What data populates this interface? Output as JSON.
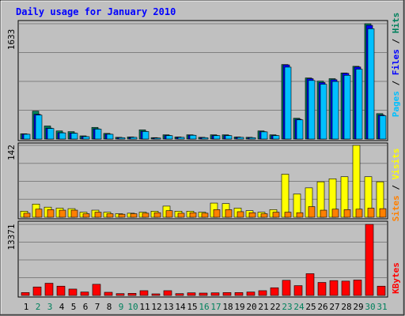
{
  "chart_data": {
    "type": "bar",
    "title": "Daily usage for January 2010",
    "days": [
      1,
      2,
      3,
      4,
      5,
      6,
      7,
      8,
      9,
      10,
      11,
      12,
      13,
      14,
      15,
      16,
      17,
      18,
      19,
      20,
      21,
      22,
      23,
      24,
      25,
      26,
      27,
      28,
      29,
      30,
      31
    ],
    "weekend_days": [
      2,
      3,
      9,
      10,
      16,
      17,
      23,
      24,
      30,
      31
    ],
    "panels": {
      "hits_panel": {
        "max_label": "1633",
        "ylim": [
          0,
          1633
        ],
        "legend": [
          "Pages",
          "Files",
          "Hits"
        ],
        "series": [
          {
            "name": "Hits",
            "values": [
              75,
              395,
              185,
              115,
              105,
              45,
              165,
              80,
              25,
              30,
              130,
              20,
              60,
              30,
              60,
              25,
              60,
              60,
              30,
              25,
              115,
              60,
              1055,
              295,
              865,
              820,
              855,
              935,
              1030,
              1633,
              360
            ]
          },
          {
            "name": "Files",
            "values": [
              70,
              350,
              155,
              90,
              85,
              35,
              145,
              70,
              20,
              25,
              110,
              15,
              50,
              25,
              55,
              20,
              50,
              50,
              25,
              20,
              105,
              50,
              1050,
              280,
              855,
              800,
              840,
              930,
              1020,
              1610,
              340
            ]
          },
          {
            "name": "Pages",
            "values": [
              5,
              6,
              4,
              5,
              3,
              2,
              4,
              3,
              2,
              2,
              3,
              1,
              2,
              1,
              2,
              1,
              2,
              2,
              1,
              1,
              3,
              2,
              8,
              4,
              6,
              5,
              6,
              7,
              8,
              12,
              4
            ]
          }
        ]
      },
      "visits_panel": {
        "max_label": "142",
        "ylim": [
          0,
          142
        ],
        "legend": [
          "Sites",
          "Visits"
        ],
        "series": [
          {
            "name": "Visits",
            "values": [
              12,
              26,
              20,
              18,
              17,
              10,
              14,
              10,
              7,
              8,
              10,
              12,
              22,
              12,
              12,
              10,
              28,
              27,
              18,
              13,
              10,
              15,
              85,
              46,
              58,
              70,
              76,
              80,
              142,
              80,
              70
            ]
          },
          {
            "name": "Sites",
            "values": [
              8,
              16,
              15,
              14,
              14,
              7,
              10,
              7,
              6,
              7,
              8,
              9,
              13,
              8,
              9,
              8,
              15,
              15,
              11,
              9,
              7,
              10,
              10,
              9,
              21,
              14,
              16,
              15,
              16,
              18,
              17
            ]
          }
        ]
      },
      "kbytes_panel": {
        "max_label": "13371",
        "ylim": [
          0,
          13371
        ],
        "legend": [
          "KBytes"
        ],
        "series": [
          {
            "name": "KBytes",
            "values": [
              550,
              1600,
              2300,
              1750,
              1200,
              650,
              2100,
              600,
              350,
              400,
              900,
              300,
              900,
              350,
              500,
              450,
              500,
              550,
              550,
              650,
              900,
              1450,
              2850,
              1850,
              4100,
              2450,
              2800,
              2700,
              2900,
              13371,
              1750
            ]
          }
        ]
      }
    },
    "colors": {
      "background": "#c0c0c0",
      "plot_bg": "#c0c0c0",
      "hits": "#00805c",
      "files": "#0000ff",
      "pages": "#00c0ff",
      "visits": "#ffff00",
      "sites": "#ff8000",
      "kbytes": "#ff0000",
      "title": "#0000ff",
      "weekday_label": "#000000",
      "weekend_label": "#00805c"
    }
  }
}
